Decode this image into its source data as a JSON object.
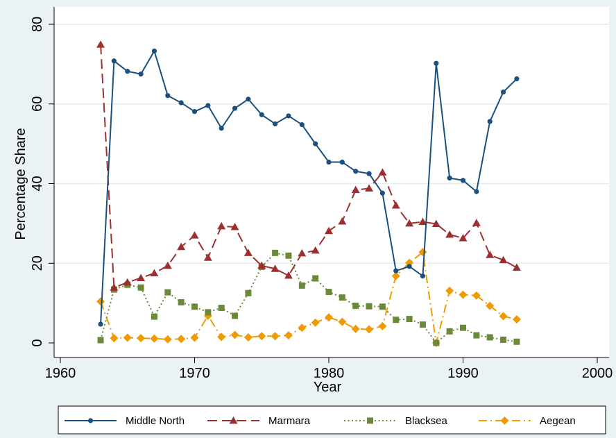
{
  "chart_data": {
    "type": "line",
    "xlabel": "Year",
    "ylabel": "Percentage Share",
    "xlim": [
      1960,
      2000
    ],
    "ylim": [
      0,
      80
    ],
    "xticks": [
      1960,
      1970,
      1980,
      1990,
      2000
    ],
    "yticks": [
      0,
      20,
      40,
      60,
      80
    ],
    "grid": "horizontal",
    "legend_position": "bottom",
    "x": [
      1963,
      1964,
      1965,
      1966,
      1967,
      1968,
      1969,
      1970,
      1971,
      1972,
      1973,
      1974,
      1975,
      1976,
      1977,
      1978,
      1979,
      1980,
      1981,
      1982,
      1983,
      1984,
      1985,
      1986,
      1987,
      1988,
      1989,
      1990,
      1991,
      1992,
      1993,
      1994
    ],
    "series": [
      {
        "name": "Middle North",
        "color": "#1a4f7e",
        "dash": "solid",
        "marker": "circle",
        "values": [
          4.7,
          70.8,
          68.2,
          67.5,
          73.3,
          62.1,
          60.3,
          58.1,
          59.6,
          53.9,
          58.9,
          61.2,
          57.3,
          55.0,
          57.0,
          54.8,
          50.0,
          45.4,
          45.4,
          43.1,
          42.5,
          37.6,
          18.1,
          19.2,
          16.8,
          70.2,
          41.4,
          40.8,
          38.0,
          55.6,
          63.0,
          66.3
        ]
      },
      {
        "name": "Marmara",
        "color": "#9c3030",
        "dash": "dash",
        "marker": "triangle",
        "values": [
          74.9,
          13.9,
          15.2,
          16.3,
          17.5,
          19.4,
          24.1,
          27.0,
          21.4,
          29.3,
          29.1,
          22.6,
          19.4,
          18.6,
          16.9,
          22.5,
          23.2,
          28.1,
          30.5,
          38.4,
          38.8,
          42.8,
          34.5,
          30.0,
          30.4,
          29.9,
          27.2,
          26.3,
          30.1,
          22.1,
          20.8,
          18.9
        ]
      },
      {
        "name": "Blacksea",
        "color": "#6a8a3a",
        "dash": "dot",
        "marker": "square",
        "values": [
          0.7,
          13.4,
          14.6,
          13.9,
          6.6,
          12.7,
          10.2,
          9.1,
          7.7,
          8.8,
          6.8,
          12.5,
          19.1,
          22.6,
          21.9,
          14.4,
          16.2,
          12.8,
          11.4,
          9.3,
          9.2,
          9.1,
          5.8,
          6.0,
          4.6,
          0.0,
          2.9,
          3.8,
          1.9,
          1.4,
          0.8,
          0.3
        ]
      },
      {
        "name": "Aegean",
        "color": "#ee9a00",
        "dash": "dashdot",
        "marker": "diamond",
        "values": [
          10.4,
          1.2,
          1.3,
          1.2,
          1.1,
          0.9,
          1.0,
          1.3,
          6.8,
          1.5,
          2.0,
          1.4,
          1.7,
          1.7,
          1.9,
          3.8,
          5.1,
          6.4,
          5.3,
          3.5,
          3.4,
          4.2,
          16.8,
          20.1,
          22.8,
          0.0,
          13.1,
          12.1,
          11.9,
          9.3,
          6.7,
          5.9
        ]
      }
    ]
  }
}
